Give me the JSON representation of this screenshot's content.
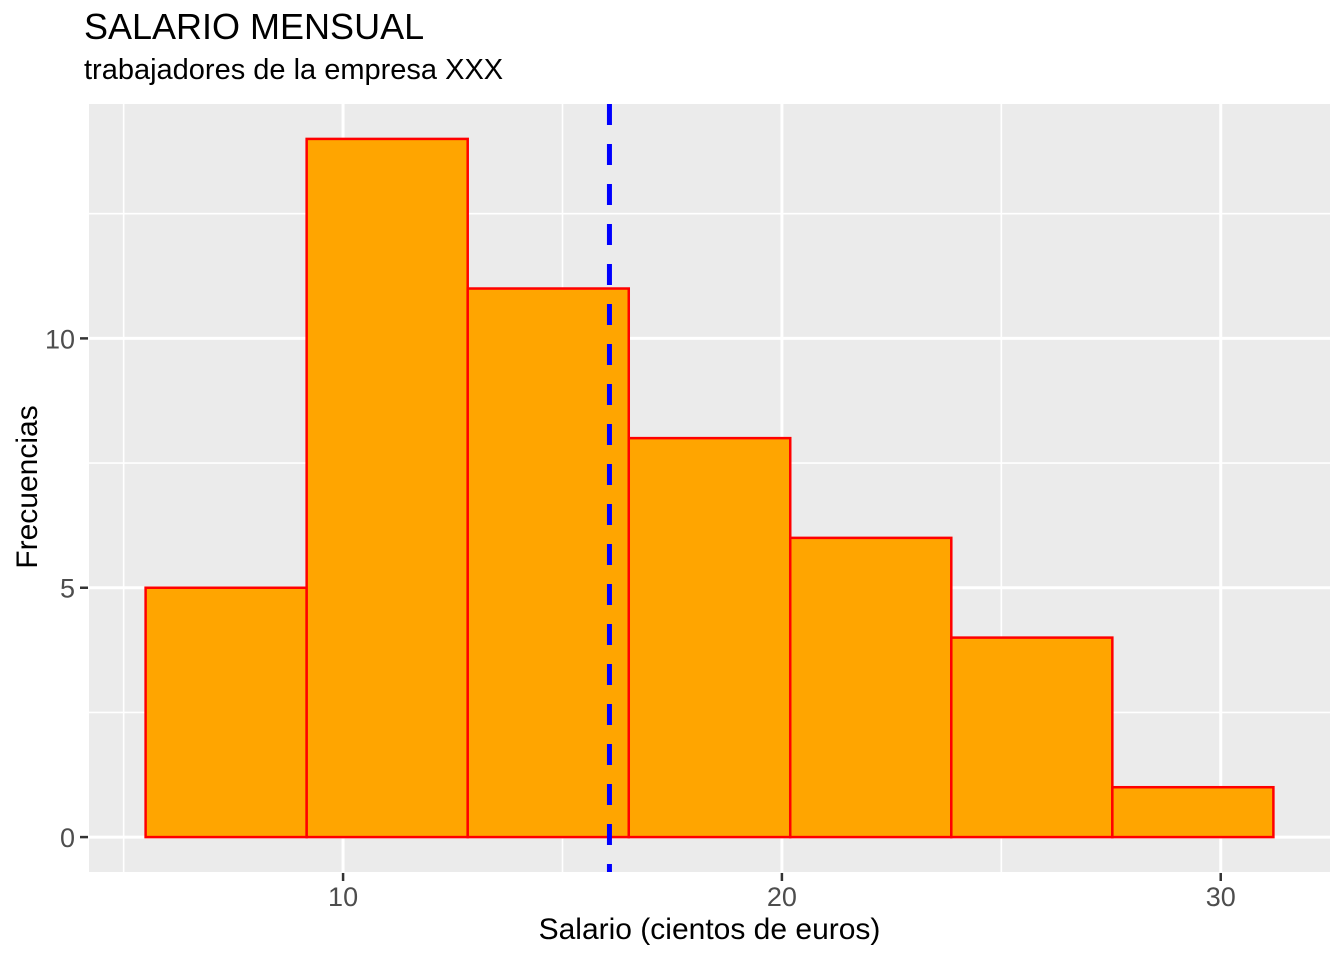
{
  "chart_data": {
    "type": "bar",
    "subtype": "histogram",
    "title": "SALARIO MENSUAL",
    "subtitle": "trabajadores de la empresa XXX",
    "xlabel": "Salario (cientos de euros)",
    "ylabel": "Frecuencias",
    "bin_edges": [
      5.5,
      9.17,
      12.84,
      16.51,
      20.19,
      23.86,
      27.53,
      31.2
    ],
    "counts": [
      5,
      14,
      11,
      8,
      6,
      4,
      1
    ],
    "vline": {
      "x": 16.07,
      "style": "dashed",
      "color": "#0000FF"
    },
    "x_ticks": [
      10,
      20,
      30
    ],
    "y_ticks": [
      0,
      5,
      10
    ],
    "x_minor_ticks": [
      5,
      15,
      25
    ],
    "y_minor_ticks": [
      2.5,
      7.5,
      12.5
    ],
    "xlim": [
      4.21,
      32.49
    ],
    "ylim": [
      -0.7,
      14.7
    ],
    "grid": true,
    "legend": "none",
    "colors": {
      "bar_fill": "#FFA500",
      "bar_stroke": "#FF0000",
      "panel_bg": "#EBEBEB",
      "grid_line": "#FFFFFF",
      "tick_mark": "#333333",
      "tick_label": "#4D4D4D",
      "text": "#000000",
      "page_bg": "#FFFFFF"
    }
  }
}
